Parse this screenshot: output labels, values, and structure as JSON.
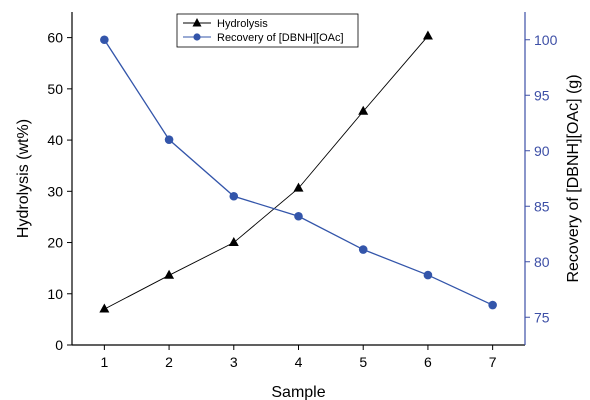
{
  "chart_data": {
    "type": "line",
    "x": [
      1,
      2,
      3,
      4,
      5,
      6,
      7
    ],
    "xlabel": "Sample",
    "ylabel_left": "Hydrolysis (wt%)",
    "ylabel_right": "Recovery of [DBNH][OAc] (g)",
    "xlim": [
      0.5,
      7.5
    ],
    "ylim_left": [
      0,
      65
    ],
    "ylim_right": [
      72.5,
      102.5
    ],
    "xticks": [
      1,
      2,
      3,
      4,
      5,
      6,
      7
    ],
    "yticks_left": [
      0,
      10,
      20,
      30,
      40,
      50,
      60
    ],
    "yticks_right": [
      75,
      80,
      85,
      90,
      95,
      100
    ],
    "grid": false,
    "legend": "top-center",
    "series": [
      {
        "name": "Hydrolysis",
        "axis": "left",
        "marker": "triangle",
        "color": "#000000",
        "x": [
          1,
          2,
          3,
          4,
          5,
          6
        ],
        "y": [
          7.0,
          13.6,
          20.0,
          30.6,
          45.6,
          60.3
        ]
      },
      {
        "name": "Recovery of [DBNH][OAc]",
        "axis": "right",
        "marker": "circle",
        "color": "#3355aa",
        "x": [
          1,
          2,
          3,
          4,
          5,
          6,
          7
        ],
        "y": [
          100.0,
          91.0,
          85.9,
          84.1,
          81.1,
          78.8,
          76.1
        ]
      }
    ]
  },
  "colors": {
    "left_axis": "#000000",
    "right_axis": "#3d4fa6",
    "recovery_series": "#3355aa",
    "hydrolysis_series": "#000000"
  }
}
